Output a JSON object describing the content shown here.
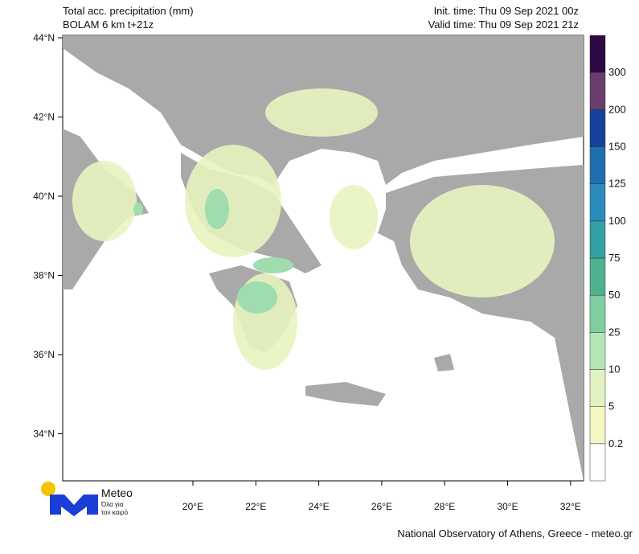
{
  "header": {
    "title": "Total acc. precipitation (mm)",
    "subtitle": "BOLAM 6 km t+21z",
    "init_time": "Init. time: Thu 09 Sep 2021 00z",
    "valid_time": "Valid time: Thu 09 Sep 2021 21z"
  },
  "latitude_labels": [
    "44°N",
    "42°N",
    "40°N",
    "38°N",
    "36°N",
    "34°N"
  ],
  "longitude_labels": [
    "20°E",
    "22°E",
    "24°E",
    "26°E",
    "28°E",
    "30°E",
    "32°E"
  ],
  "colorbar": {
    "levels": [
      0.2,
      5,
      10,
      25,
      50,
      75,
      100,
      125,
      150,
      200,
      300
    ],
    "colors": [
      "#ffffff",
      "#f2f7c4",
      "#e2f3c1",
      "#b3e6b5",
      "#7fcfa0",
      "#4db38f",
      "#34a0a4",
      "#2b8cbe",
      "#1f6eb0",
      "#15439b",
      "#6a3d6e",
      "#2d0a45"
    ]
  },
  "logo": {
    "name": "Meteo",
    "tagline_1": "Όλα για",
    "tagline_2": "τον καιρό"
  },
  "footer": "National Observatory of Athens, Greece - meteo.gr"
}
